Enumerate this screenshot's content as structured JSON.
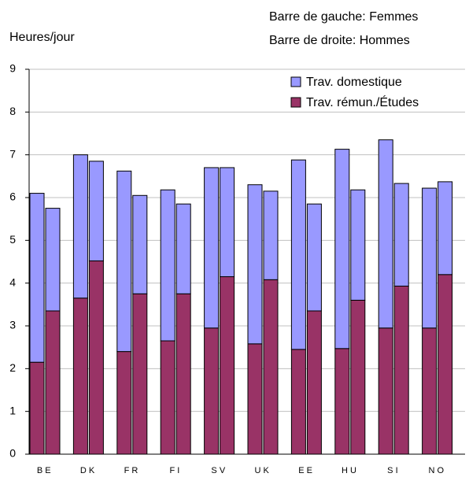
{
  "chart_data": {
    "type": "stacked-grouped-bar",
    "y_label": "Heures/jour",
    "notes": [
      "Barre de gauche: Femmes",
      "Barre de droite: Hommes"
    ],
    "categories": [
      "B E",
      "D K",
      "F R",
      "F I",
      "S V",
      "U K",
      "E E",
      "H U",
      "S I",
      "N O"
    ],
    "series": [
      {
        "name": "Trav. rémun./Études",
        "color": "#993366",
        "values": [
          [
            2.15,
            3.35
          ],
          [
            3.65,
            4.52
          ],
          [
            2.4,
            3.75
          ],
          [
            2.65,
            3.75
          ],
          [
            2.95,
            4.15
          ],
          [
            2.58,
            4.08
          ],
          [
            2.45,
            3.35
          ],
          [
            2.47,
            3.6
          ],
          [
            2.95,
            3.93
          ],
          [
            2.95,
            4.2
          ]
        ]
      },
      {
        "name": "Trav. domestique",
        "color": "#9999ff",
        "values": [
          [
            3.95,
            2.4
          ],
          [
            3.35,
            2.33
          ],
          [
            4.22,
            2.3
          ],
          [
            3.53,
            2.1
          ],
          [
            3.75,
            2.55
          ],
          [
            3.72,
            2.07
          ],
          [
            4.43,
            2.5
          ],
          [
            4.66,
            2.58
          ],
          [
            4.4,
            2.4
          ],
          [
            3.27,
            2.17
          ]
        ]
      }
    ],
    "ylim": [
      0,
      9
    ],
    "yticks": [
      0,
      1,
      2,
      3,
      4,
      5,
      6,
      7,
      8,
      9
    ],
    "grid": true
  }
}
